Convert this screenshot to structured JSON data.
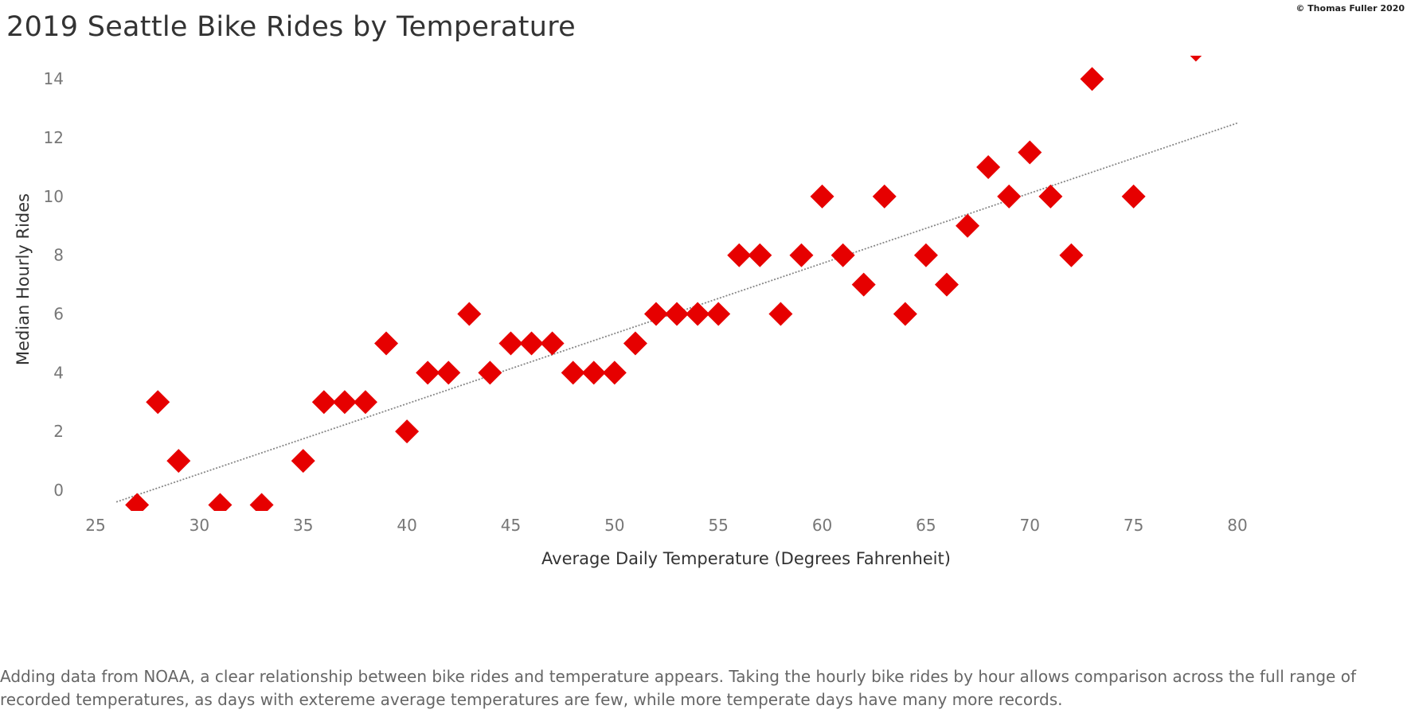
{
  "copyright": "© Thomas Fuller 2020",
  "title": "2019 Seattle Bike Rides by Temperature",
  "caption": "Adding data from NOAA, a clear relationship between bike rides and temperature appears. Taking the hourly bike rides by hour allows comparison across the full range of recorded temperatures, as days with extereme average temperatures are few, while more temperate days have many more records.",
  "colors": {
    "marker": "#e60000",
    "trend": "#888888"
  },
  "chart_data": {
    "type": "scatter",
    "xlabel": "Average Daily Temperature (Degrees Fahrenheit)",
    "ylabel": "Median Hourly Rides",
    "xlim": [
      25,
      80
    ],
    "ylim": [
      -0.5,
      15
    ],
    "x_ticks": [
      "25",
      "30",
      "35",
      "40",
      "45",
      "50",
      "55",
      "60",
      "65",
      "70",
      "75",
      "80"
    ],
    "y_ticks": [
      "0",
      "2",
      "4",
      "6",
      "8",
      "10",
      "12",
      "14"
    ],
    "marker": "diamond",
    "trend_line": {
      "style": "dotted",
      "x": [
        26,
        80
      ],
      "y": [
        -0.4,
        12.5
      ]
    },
    "points": [
      {
        "x": 27,
        "y": -0.5
      },
      {
        "x": 28,
        "y": 3
      },
      {
        "x": 29,
        "y": 1
      },
      {
        "x": 31,
        "y": -0.5
      },
      {
        "x": 33,
        "y": -0.5
      },
      {
        "x": 35,
        "y": 1
      },
      {
        "x": 36,
        "y": 3
      },
      {
        "x": 37,
        "y": 3
      },
      {
        "x": 38,
        "y": 3
      },
      {
        "x": 39,
        "y": 5
      },
      {
        "x": 40,
        "y": 2
      },
      {
        "x": 41,
        "y": 4
      },
      {
        "x": 42,
        "y": 4
      },
      {
        "x": 43,
        "y": 6
      },
      {
        "x": 44,
        "y": 4
      },
      {
        "x": 45,
        "y": 5
      },
      {
        "x": 46,
        "y": 5
      },
      {
        "x": 47,
        "y": 5
      },
      {
        "x": 48,
        "y": 4
      },
      {
        "x": 49,
        "y": 4
      },
      {
        "x": 50,
        "y": 4
      },
      {
        "x": 51,
        "y": 5
      },
      {
        "x": 52,
        "y": 6
      },
      {
        "x": 53,
        "y": 6
      },
      {
        "x": 54,
        "y": 6
      },
      {
        "x": 55,
        "y": 6
      },
      {
        "x": 56,
        "y": 8
      },
      {
        "x": 57,
        "y": 8
      },
      {
        "x": 58,
        "y": 6
      },
      {
        "x": 59,
        "y": 8
      },
      {
        "x": 60,
        "y": 10
      },
      {
        "x": 61,
        "y": 8
      },
      {
        "x": 62,
        "y": 7
      },
      {
        "x": 63,
        "y": 10
      },
      {
        "x": 64,
        "y": 6
      },
      {
        "x": 65,
        "y": 8
      },
      {
        "x": 66,
        "y": 7
      },
      {
        "x": 67,
        "y": 9
      },
      {
        "x": 68,
        "y": 11
      },
      {
        "x": 69,
        "y": 10
      },
      {
        "x": 70,
        "y": 11.5
      },
      {
        "x": 71,
        "y": 10
      },
      {
        "x": 72,
        "y": 8
      },
      {
        "x": 73,
        "y": 14
      },
      {
        "x": 75,
        "y": 10
      },
      {
        "x": 78,
        "y": 15
      }
    ]
  }
}
